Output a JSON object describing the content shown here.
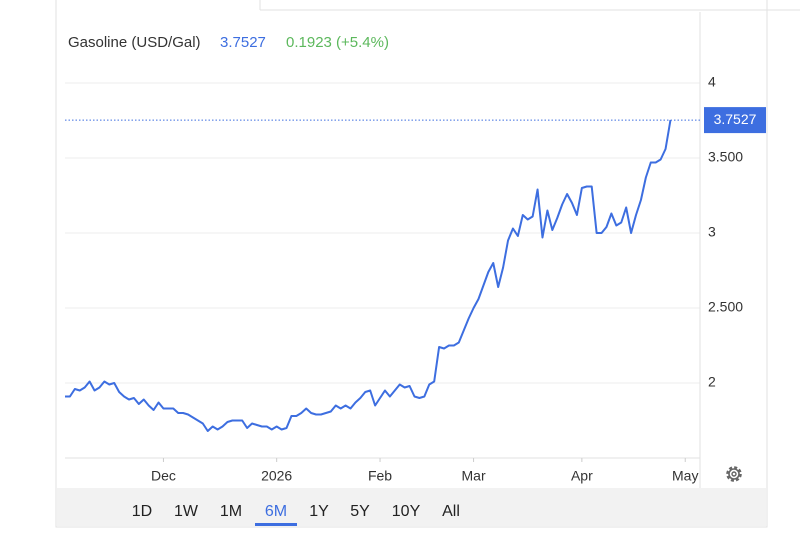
{
  "header": {
    "title": "Gasoline (USD/Gal)",
    "price": "3.7527",
    "change": "0.1923 (+5.4%)"
  },
  "chart_data": {
    "type": "line",
    "color": "#3d6ee0",
    "values": [
      1.91,
      1.91,
      1.96,
      1.95,
      1.97,
      2.01,
      1.95,
      1.97,
      2.01,
      1.99,
      2.0,
      1.94,
      1.91,
      1.89,
      1.9,
      1.86,
      1.89,
      1.85,
      1.82,
      1.87,
      1.83,
      1.83,
      1.83,
      1.8,
      1.8,
      1.79,
      1.77,
      1.75,
      1.73,
      1.68,
      1.71,
      1.69,
      1.71,
      1.74,
      1.75,
      1.75,
      1.75,
      1.7,
      1.73,
      1.72,
      1.71,
      1.71,
      1.69,
      1.71,
      1.69,
      1.7,
      1.78,
      1.78,
      1.8,
      1.83,
      1.8,
      1.79,
      1.79,
      1.8,
      1.81,
      1.85,
      1.83,
      1.85,
      1.83,
      1.87,
      1.9,
      1.94,
      1.95,
      1.85,
      1.9,
      1.95,
      1.91,
      1.95,
      1.99,
      1.97,
      1.98,
      1.91,
      1.9,
      1.91,
      1.99,
      2.01,
      2.24,
      2.23,
      2.25,
      2.25,
      2.27,
      2.35,
      2.43,
      2.5,
      2.56,
      2.65,
      2.74,
      2.8,
      2.64,
      2.77,
      2.95,
      3.03,
      2.98,
      3.12,
      3.09,
      3.11,
      3.29,
      2.97,
      3.15,
      3.02,
      3.1,
      3.19,
      3.26,
      3.2,
      3.12,
      3.3,
      3.31,
      3.31,
      3.0,
      3.0,
      3.04,
      3.13,
      3.05,
      3.07,
      3.17,
      3.0,
      3.12,
      3.22,
      3.37,
      3.47,
      3.47,
      3.49,
      3.56,
      3.7527
    ],
    "xlim": [
      0,
      129
    ],
    "xticks": [
      {
        "value": 20,
        "label": "Dec"
      },
      {
        "value": 43,
        "label": "2026"
      },
      {
        "value": 64,
        "label": "Feb"
      },
      {
        "value": 83,
        "label": "Mar"
      },
      {
        "value": 105,
        "label": "Apr"
      },
      {
        "value": 126,
        "label": "May"
      }
    ],
    "ylim": [
      1.5,
      4.45
    ],
    "yticks": [
      2,
      {
        "value": 2.5,
        "label": "2.500"
      },
      3,
      {
        "value": 3.5,
        "label": "3.500"
      },
      4
    ],
    "grid": true
  },
  "ranges": {
    "options": [
      "1D",
      "1W",
      "1M",
      "6M",
      "1Y",
      "5Y",
      "10Y",
      "All"
    ],
    "active": 3
  }
}
